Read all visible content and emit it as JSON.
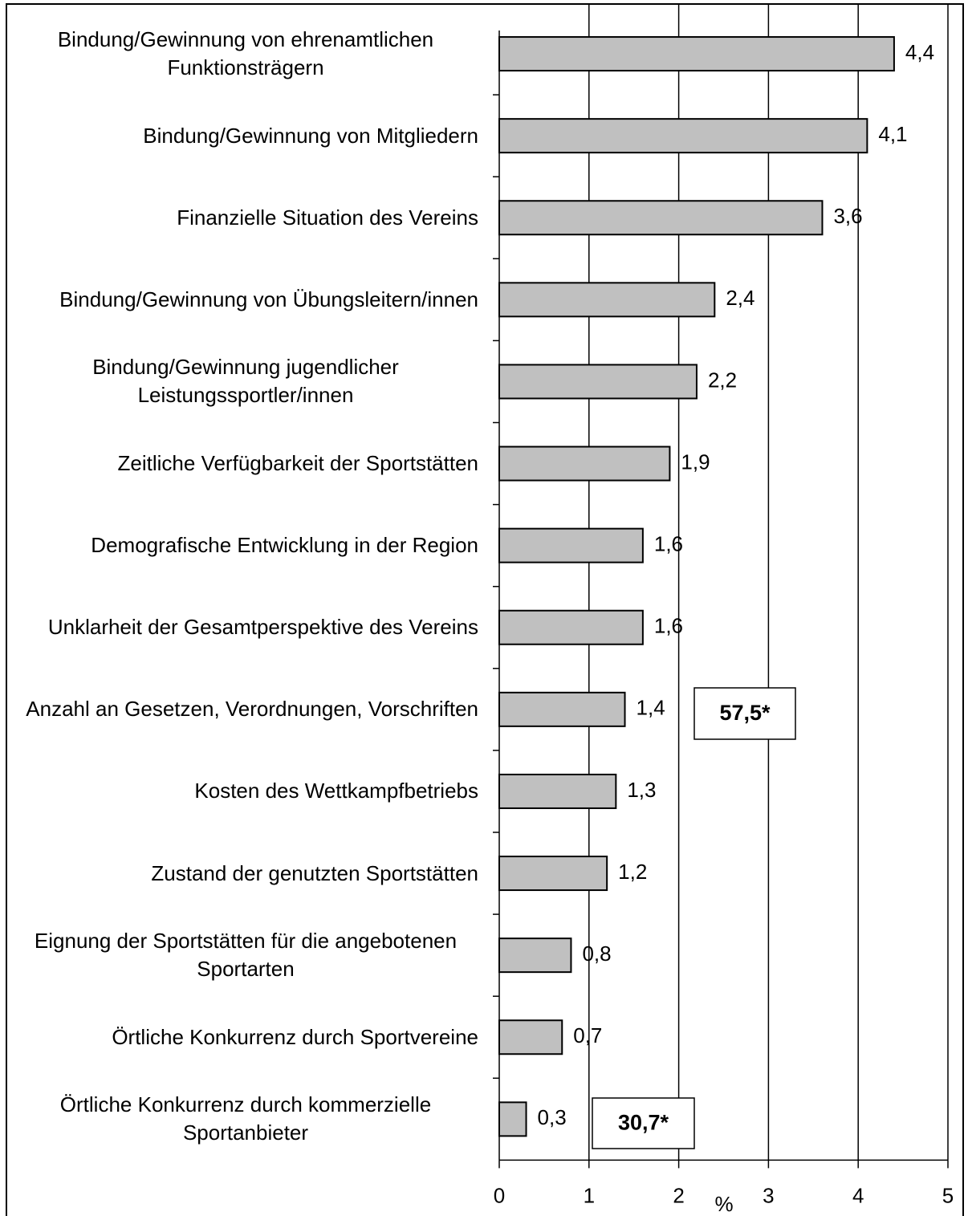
{
  "chart_data": {
    "type": "barh",
    "categories": [
      "Bindung/Gewinnung von ehrenamtlichen Funktionsträgern",
      "Bindung/Gewinnung von Mitgliedern",
      "Finanzielle Situation des Vereins",
      "Bindung/Gewinnung von Übungsleitern/innen",
      "Bindung/Gewinnung jugendlicher Leistungssportler/innen",
      "Zeitliche Verfügbarkeit der Sportstätten",
      "Demografische Entwicklung in der Region",
      "Unklarheit der Gesamtperspektive des Vereins",
      "Anzahl an Gesetzen, Verordnungen, Vorschriften",
      "Kosten des Wettkampfbetriebs",
      "Zustand der genutzten Sportstätten",
      "Eignung der Sportstätten für die angebotenen Sportarten",
      "Örtliche Konkurrenz durch Sportvereine",
      "Örtliche Konkurrenz durch kommerzielle Sportanbieter"
    ],
    "values": [
      4.4,
      4.1,
      3.6,
      2.4,
      2.2,
      1.9,
      1.6,
      1.6,
      1.4,
      1.3,
      1.2,
      0.8,
      0.7,
      0.3
    ],
    "value_labels": [
      "4,4",
      "4,1",
      "3,6",
      "2,4",
      "2,2",
      "1,9",
      "1,6",
      "1,6",
      "1,4",
      "1,3",
      "1,2",
      "0,8",
      "0,7",
      "0,3"
    ],
    "color": "#c0c0c0",
    "xlim": [
      0,
      5
    ],
    "xticks": [
      0,
      1,
      2,
      3,
      4,
      5
    ],
    "grid": true,
    "x_label": "%",
    "annotations": [
      "57,5*",
      "30,7*"
    ]
  }
}
